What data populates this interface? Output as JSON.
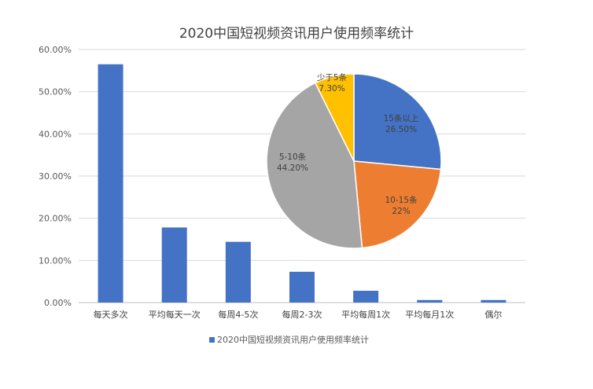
{
  "chart_data": [
    {
      "type": "bar",
      "title": "2020中国短视频资讯用户使用频率统计",
      "categories": [
        "每天多次",
        "平均每天一次",
        "每周4-5次",
        "每周2-3次",
        "平均每周1次",
        "平均每月1次",
        "偶尔"
      ],
      "series": [
        {
          "name": "2020中国短视频资讯用户使用频率统计",
          "values": [
            56.5,
            17.8,
            14.4,
            7.3,
            2.8,
            0.6,
            0.6
          ],
          "color": "#4472C4"
        }
      ],
      "yticks": [
        "0.00%",
        "10.00%",
        "20.00%",
        "30.00%",
        "40.00%",
        "50.00%",
        "60.00%"
      ],
      "ylim": [
        0,
        60
      ],
      "grid": true,
      "legend": "bottom"
    },
    {
      "type": "pie",
      "slices": [
        {
          "label": "15条以上",
          "value": 26.5,
          "value_label": "26.50%",
          "color": "#4472C4"
        },
        {
          "label": "10-15条",
          "value": 22,
          "value_label": "22%",
          "color": "#ED7D31"
        },
        {
          "label": "5-10条",
          "value": 44.2,
          "value_label": "44.20%",
          "color": "#A5A5A5"
        },
        {
          "label": "少于5条",
          "value": 7.3,
          "value_label": "7.30%",
          "color": "#FFC000"
        }
      ]
    }
  ]
}
